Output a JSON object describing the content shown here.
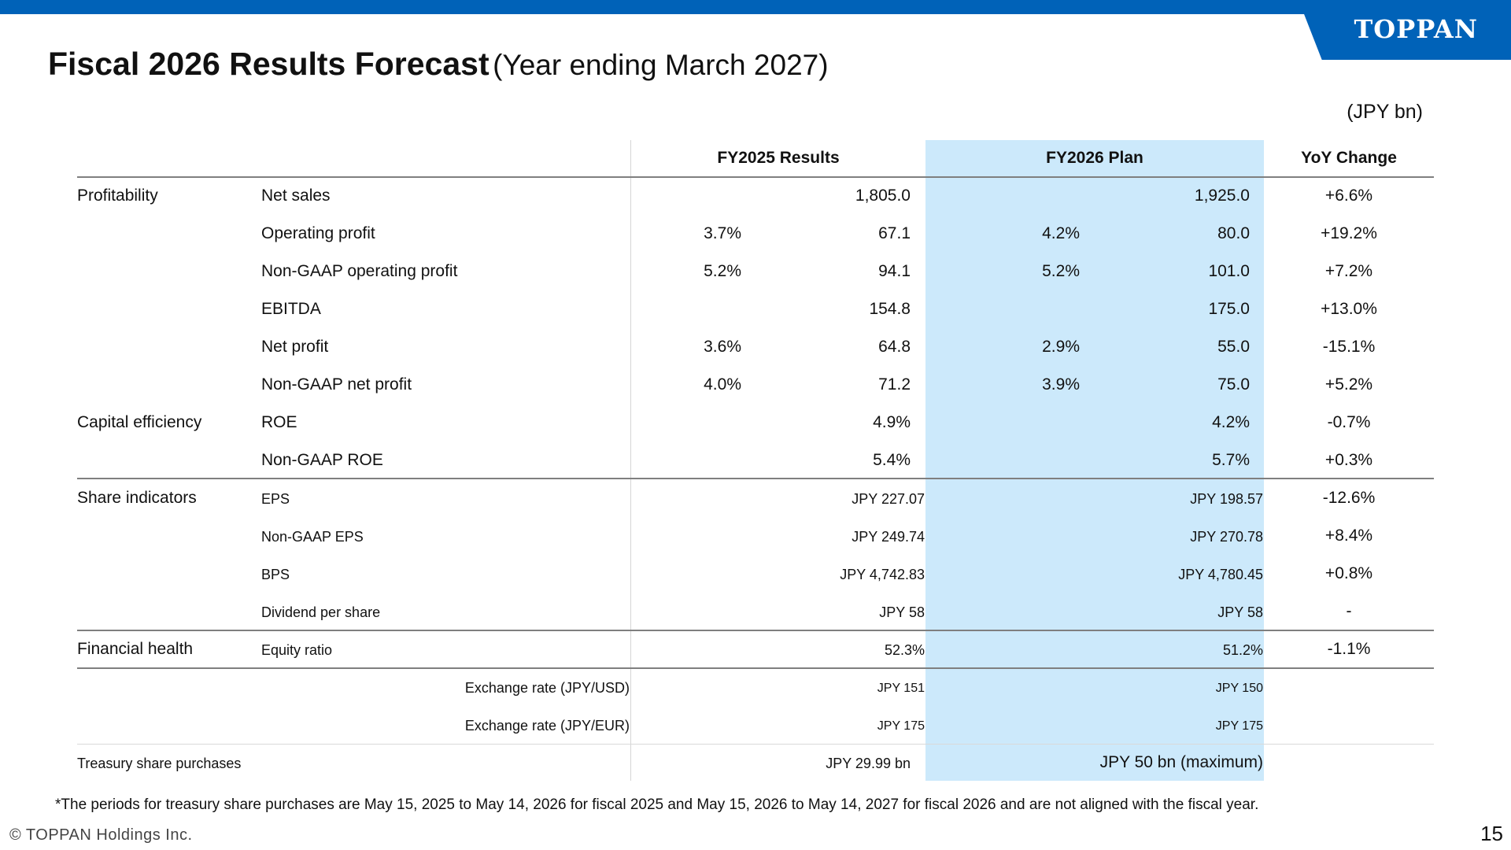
{
  "brand": {
    "logo_text": "TOPPAN"
  },
  "title": {
    "main": "Fiscal 2026 Results Forecast",
    "sub": "(Year ending March 2027)"
  },
  "unit": "(JPY bn)",
  "colors": {
    "brand_blue": "#0062b8",
    "plan_highlight": "#cce9fb"
  },
  "table": {
    "headers": {
      "fy2025": "FY2025 Results",
      "fy2026": "FY2026 Plan",
      "yoy": "YoY Change"
    },
    "groups": {
      "profitability": "Profitability",
      "capital_efficiency": "Capital efficiency",
      "share_indicators": "Share indicators",
      "financial_health": "Financial health"
    },
    "rows": [
      {
        "label": "Net sales",
        "fy25_margin": "",
        "fy25_value": "1,805.0",
        "fy26_margin": "",
        "fy26_value": "1,925.0",
        "yoy": "+6.6%"
      },
      {
        "label": "Operating profit",
        "fy25_margin": "3.7%",
        "fy25_value": "67.1",
        "fy26_margin": "4.2%",
        "fy26_value": "80.0",
        "yoy": "+19.2%"
      },
      {
        "label": "Non-GAAP operating profit",
        "fy25_margin": "5.2%",
        "fy25_value": "94.1",
        "fy26_margin": "5.2%",
        "fy26_value": "101.0",
        "yoy": "+7.2%"
      },
      {
        "label": "EBITDA",
        "fy25_margin": "",
        "fy25_value": "154.8",
        "fy26_margin": "",
        "fy26_value": "175.0",
        "yoy": "+13.0%"
      },
      {
        "label": "Net profit",
        "fy25_margin": "3.6%",
        "fy25_value": "64.8",
        "fy26_margin": "2.9%",
        "fy26_value": "55.0",
        "yoy": "-15.1%"
      },
      {
        "label": "Non-GAAP net profit",
        "fy25_margin": "4.0%",
        "fy25_value": "71.2",
        "fy26_margin": "3.9%",
        "fy26_value": "75.0",
        "yoy": "+5.2%"
      },
      {
        "label": "ROE",
        "fy25_margin": "",
        "fy25_value": "4.9%",
        "fy26_margin": "",
        "fy26_value": "4.2%",
        "yoy": "-0.7%"
      },
      {
        "label": "Non-GAAP ROE",
        "fy25_margin": "",
        "fy25_value": "5.4%",
        "fy26_margin": "",
        "fy26_value": "5.7%",
        "yoy": "+0.3%"
      },
      {
        "label": "EPS",
        "fy25_margin": "",
        "fy25_value": "JPY 227.07",
        "fy26_margin": "",
        "fy26_value": "JPY 198.57",
        "yoy": "-12.6%"
      },
      {
        "label": "Non-GAAP EPS",
        "fy25_margin": "",
        "fy25_value": "JPY 249.74",
        "fy26_margin": "",
        "fy26_value": "JPY 270.78",
        "yoy": "+8.4%"
      },
      {
        "label": "BPS",
        "fy25_margin": "",
        "fy25_value": "JPY 4,742.83",
        "fy26_margin": "",
        "fy26_value": "JPY 4,780.45",
        "yoy": "+0.8%"
      },
      {
        "label": "Dividend per share",
        "fy25_margin": "",
        "fy25_value": "JPY 58",
        "fy26_margin": "",
        "fy26_value": "JPY 58",
        "yoy": "-"
      },
      {
        "label": "Equity ratio",
        "fy25_margin": "",
        "fy25_value": "52.3%",
        "fy26_margin": "",
        "fy26_value": "51.2%",
        "yoy": "-1.1%"
      }
    ],
    "exchange": [
      {
        "label": "Exchange rate (JPY/USD)",
        "fy25": "JPY 151",
        "fy26": "JPY 150"
      },
      {
        "label": "Exchange rate (JPY/EUR)",
        "fy25": "JPY 175",
        "fy26": "JPY 175"
      }
    ],
    "treasury": {
      "label": "Treasury share purchases",
      "fy25": "JPY 29.99 bn",
      "fy26": "JPY 50 bn (maximum)"
    }
  },
  "footnote": "*The periods for treasury share purchases are May 15, 2025 to May 14, 2026 for fiscal 2025 and May 15, 2026 to May 14, 2027 for fiscal 2026 and are not aligned with the fiscal year.",
  "copyright": "© TOPPAN Holdings Inc.",
  "page_number": "15"
}
